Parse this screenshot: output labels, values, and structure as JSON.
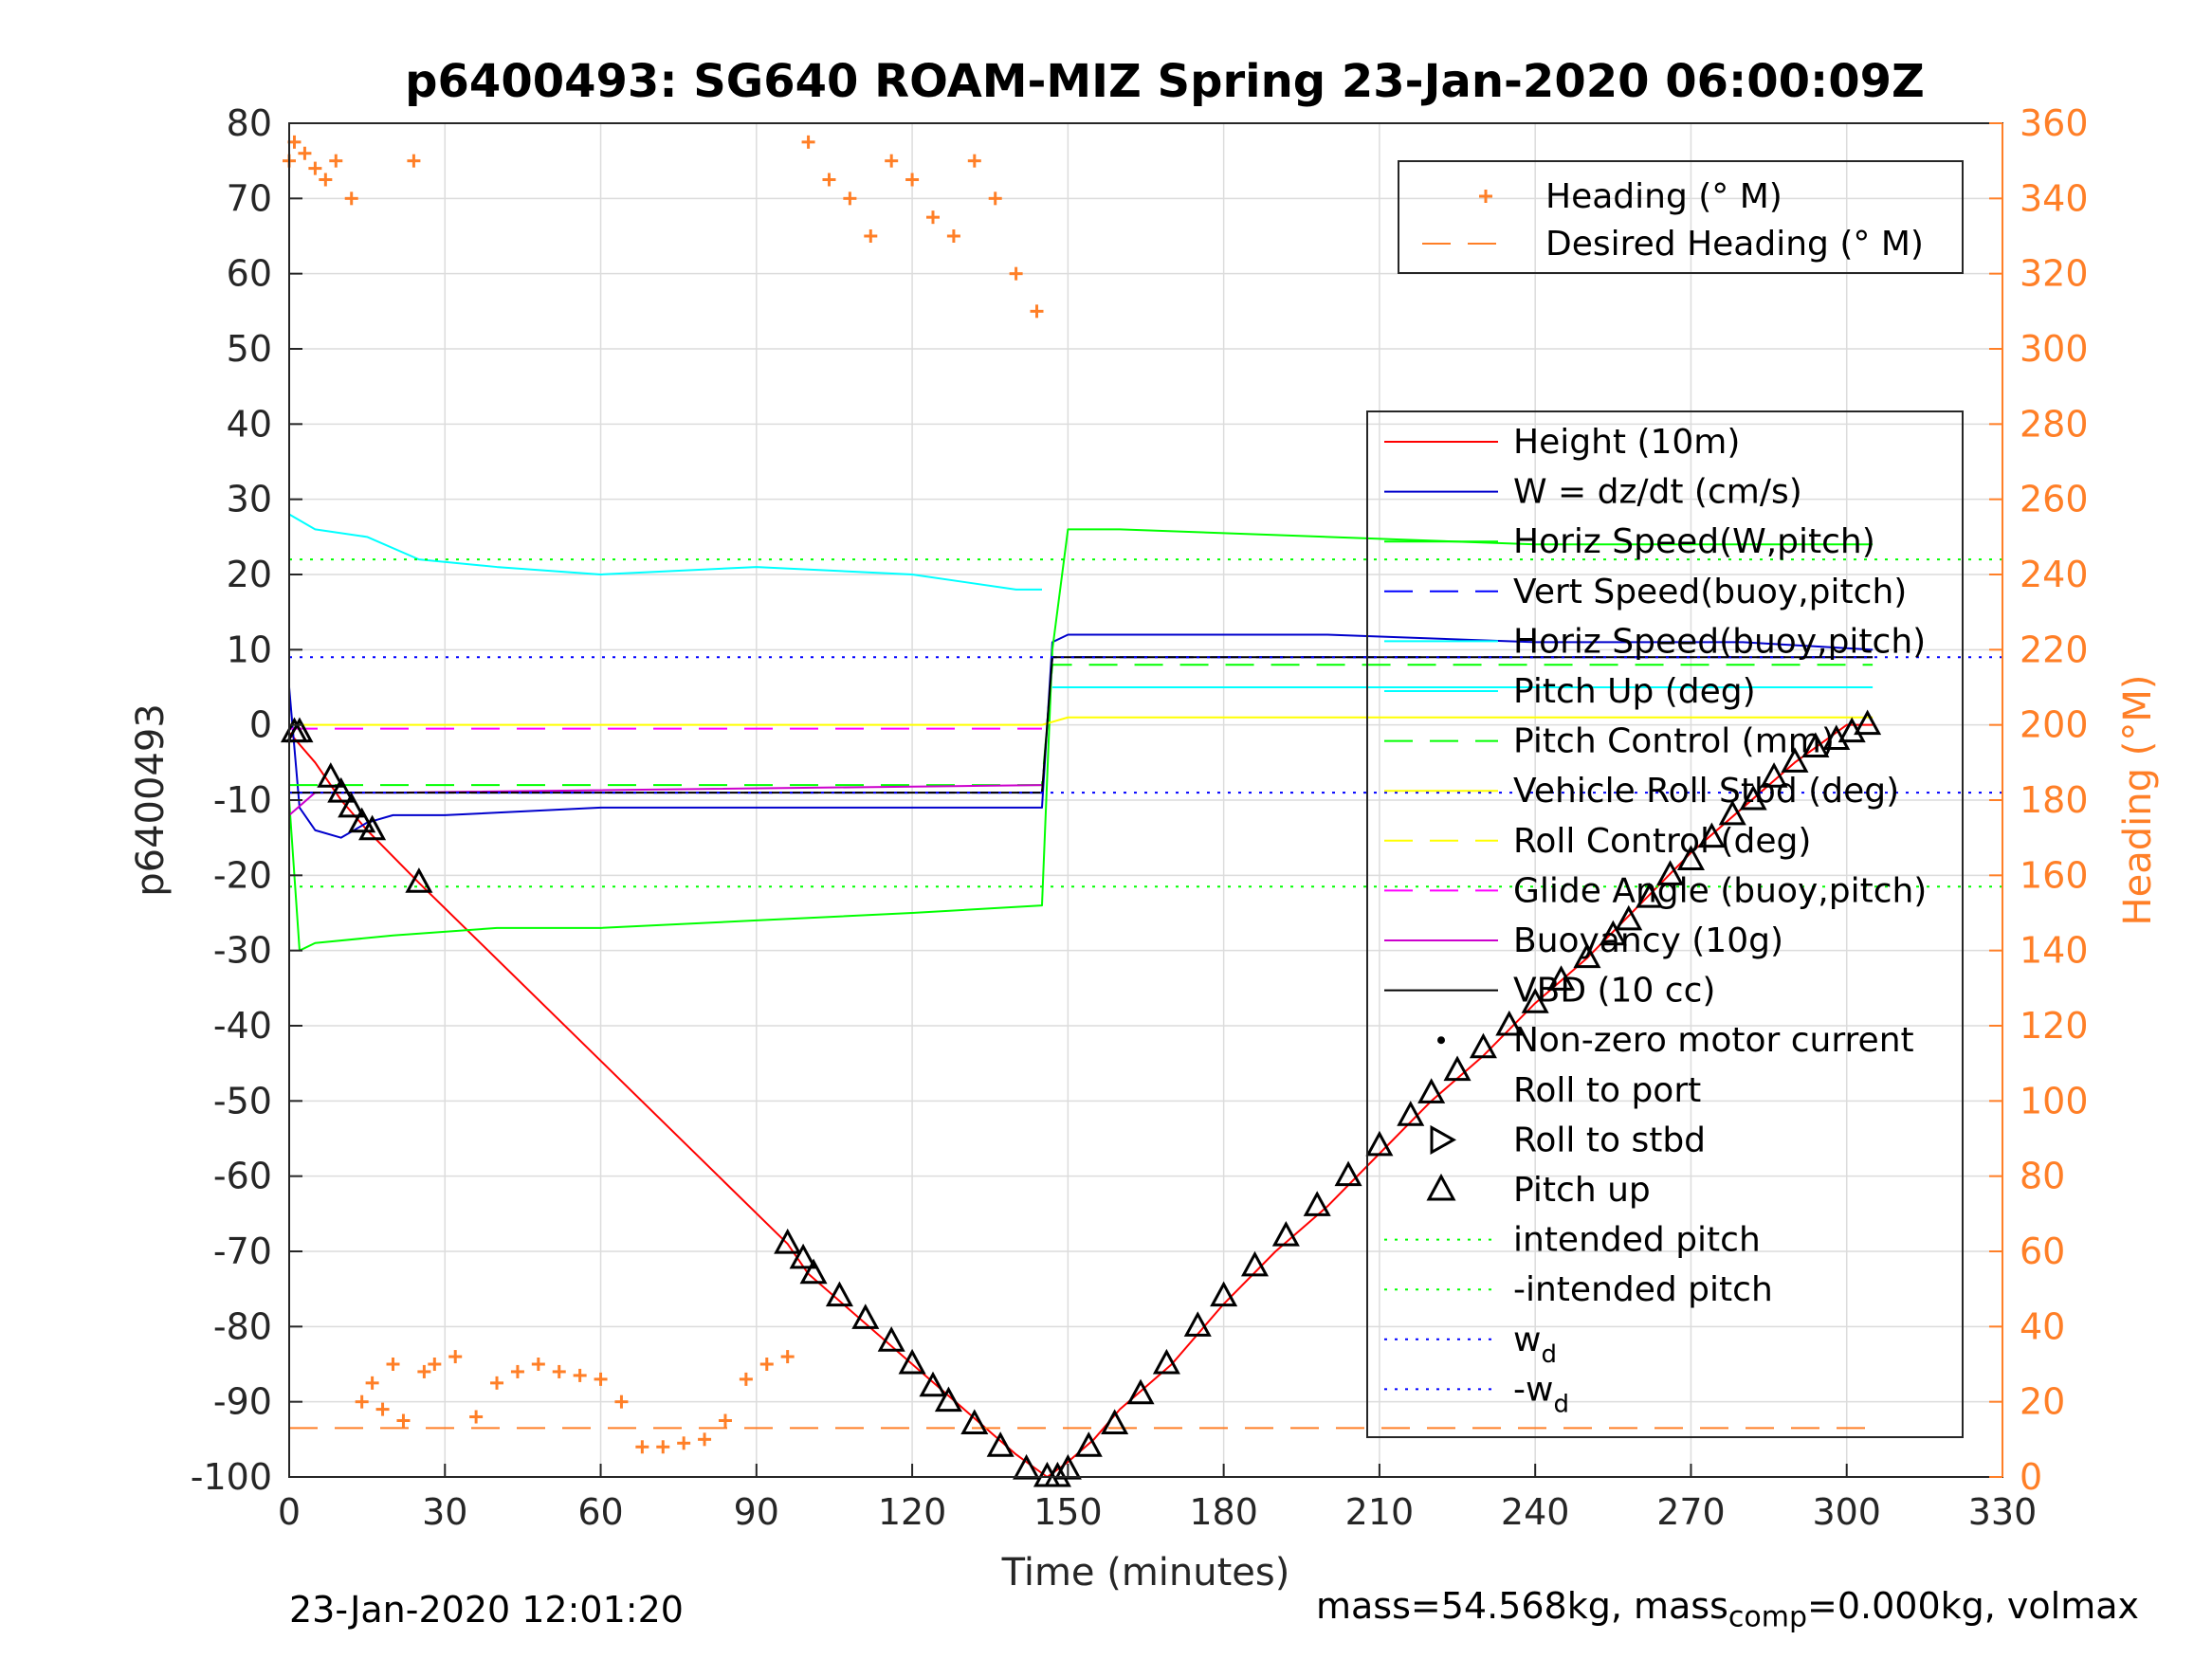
{
  "chart_data": {
    "type": "line",
    "title": "p6400493: SG640 ROAM-MIZ Spring 23-Jan-2020 06:00:09Z",
    "xlabel": "Time (minutes)",
    "ylabel": "p6400493",
    "y2label": "Heading (°M)",
    "xlim": [
      0,
      330
    ],
    "ylim": [
      -100,
      80
    ],
    "y2lim": [
      0,
      360
    ],
    "xticks": [
      0,
      30,
      60,
      90,
      120,
      150,
      180,
      210,
      240,
      270,
      300,
      330
    ],
    "yticks": [
      -100,
      -90,
      -80,
      -70,
      -60,
      -50,
      -40,
      -30,
      -20,
      -10,
      0,
      10,
      20,
      30,
      40,
      50,
      60,
      70,
      80
    ],
    "y2ticks": [
      0,
      20,
      40,
      60,
      80,
      100,
      120,
      140,
      160,
      180,
      200,
      220,
      240,
      260,
      280,
      300,
      320,
      340,
      360
    ],
    "grid": true,
    "colors": {
      "heading": "#ff7f27",
      "height": "#ff0000",
      "w": "#0000cc",
      "horiz_w": "#00ff00",
      "vert_buoy": "#0000ff",
      "horiz_buoy": "#00ffff",
      "pitch_up": "#00ffff",
      "pitch_control": "#00ff00",
      "roll_stbd": "#ffff00",
      "roll_control": "#ffff00",
      "glide": "#ff00ff",
      "buoyancy": "#cc00cc",
      "vbd": "#000000",
      "markers": "#000000"
    },
    "legends": [
      {
        "placement": "top-right",
        "entries": [
          "Heading (° M)",
          "Desired Heading (° M)"
        ]
      },
      {
        "placement": "right",
        "entries": [
          "Height (10m)",
          "W = dz/dt (cm/s)",
          "Horiz Speed(W,pitch)",
          "Vert Speed(buoy,pitch)",
          "Horiz Speed(buoy,pitch)",
          "Pitch Up (deg)",
          "Pitch Control (mm)",
          "Vehicle Roll Stbd (deg)",
          "Roll Control (deg)",
          "Glide Angle (buoy,pitch)",
          "Buoyancy (10g)",
          "VBD (10 cc)",
          "Non-zero motor current",
          "Roll to port",
          "Roll to stbd",
          "Pitch up",
          "intended pitch",
          "-intended pitch",
          "w",
          "-w"
        ],
        "subscripts": {
          "w": "d",
          "-w": "d"
        }
      }
    ],
    "series": [
      {
        "name": "Height (10m)",
        "axis": "left",
        "x": [
          0,
          5,
          10,
          15,
          25,
          96,
          100,
          110,
          120,
          130,
          140,
          146,
          150,
          155,
          160,
          170,
          180,
          190,
          200,
          210,
          220,
          230,
          240,
          250,
          260,
          270,
          280,
          290,
          300,
          305
        ],
        "y": [
          -1,
          -5,
          -10,
          -14,
          -21,
          -69,
          -73,
          -79,
          -85,
          -91,
          -97,
          -100,
          -98,
          -95,
          -91,
          -85,
          -77,
          -70,
          -64,
          -57,
          -50,
          -44,
          -37,
          -31,
          -24,
          -17,
          -11,
          -5,
          0,
          0
        ]
      },
      {
        "name": "W = dz/dt (cm/s)",
        "axis": "left",
        "x": [
          0,
          2,
          5,
          10,
          15,
          20,
          30,
          60,
          90,
          120,
          145,
          147,
          150,
          160,
          200,
          240,
          280,
          305
        ],
        "y": [
          5,
          -11,
          -14,
          -15,
          -13,
          -12,
          -12,
          -11,
          -11,
          -11,
          -11,
          11,
          12,
          12,
          12,
          11,
          11,
          10
        ]
      },
      {
        "name": "Horiz Speed(W,pitch)",
        "axis": "left",
        "x": [
          0,
          2,
          5,
          20,
          40,
          60,
          90,
          120,
          145,
          147,
          150,
          160,
          200,
          240,
          280,
          305
        ],
        "y": [
          -10,
          -30,
          -29,
          -28,
          -27,
          -27,
          -26,
          -25,
          -24,
          10,
          26,
          26,
          25,
          24,
          24,
          24
        ]
      },
      {
        "name": "Vert Speed(buoy,pitch)",
        "axis": "left",
        "x": [
          0,
          145,
          147,
          305
        ],
        "y": [
          -9,
          -9,
          9,
          9
        ]
      },
      {
        "name": "Horiz Speed(buoy,pitch)",
        "axis": "left",
        "x": [
          0,
          5,
          15,
          25,
          40,
          60,
          90,
          120,
          130,
          140,
          145
        ],
        "y": [
          28,
          26,
          25,
          22,
          21,
          20,
          21,
          20,
          19,
          18,
          18
        ]
      },
      {
        "name": "Pitch Up (deg)",
        "axis": "left",
        "x": [
          147,
          305
        ],
        "y": [
          5,
          5
        ]
      },
      {
        "name": "Pitch Control (mm)",
        "axis": "left",
        "x": [
          0,
          145,
          147,
          305
        ],
        "y": [
          -8,
          -8,
          8,
          8
        ]
      },
      {
        "name": "Vehicle Roll Stbd (deg)",
        "axis": "left",
        "x": [
          0,
          145,
          150,
          305
        ],
        "y": [
          0,
          0,
          1,
          1
        ]
      },
      {
        "name": "Glide Angle (buoy,pitch)",
        "axis": "left",
        "x": [
          0,
          145
        ],
        "y": [
          -0.5,
          -0.5
        ]
      },
      {
        "name": "Buoyancy (10g)",
        "axis": "left",
        "x": [
          0,
          5,
          20,
          145
        ],
        "y": [
          -12,
          -9,
          -9,
          -8
        ]
      },
      {
        "name": "VBD (10 cc)",
        "axis": "left",
        "x": [
          0,
          145,
          147,
          305
        ],
        "y": [
          -9,
          -9,
          9,
          9
        ]
      },
      {
        "name": "intended pitch",
        "axis": "left",
        "x": [
          0,
          330
        ],
        "y": [
          22,
          22
        ]
      },
      {
        "name": "-intended pitch",
        "axis": "left",
        "x": [
          0,
          330
        ],
        "y": [
          -21.5,
          -21.5
        ]
      },
      {
        "name": "w",
        "axis": "left",
        "x": [
          0,
          330
        ],
        "y": [
          9,
          9
        ]
      },
      {
        "name": "-w",
        "axis": "left",
        "x": [
          0,
          330
        ],
        "y": [
          -9,
          -9
        ]
      },
      {
        "name": "Desired Heading (° M)",
        "axis": "right",
        "x": [
          0,
          305
        ],
        "y": [
          13,
          13
        ]
      },
      {
        "name": "Pitch up",
        "axis": "left",
        "marker": "triangle-up",
        "x": [
          1,
          2,
          8,
          10,
          12,
          14,
          16,
          25,
          96,
          99,
          101,
          106,
          111,
          116,
          120,
          124,
          127,
          132,
          137,
          142,
          146,
          148,
          150,
          154,
          159,
          164,
          169,
          175,
          180,
          186,
          192,
          198,
          204,
          210,
          216,
          220,
          225,
          230,
          235,
          240,
          245,
          250,
          255,
          258,
          262,
          266,
          270,
          274,
          278,
          282,
          286,
          290,
          294,
          298,
          301,
          304
        ],
        "y": [
          -1,
          -1,
          -7,
          -9,
          -11,
          -13,
          -14,
          -21,
          -69,
          -71,
          -73,
          -76,
          -79,
          -82,
          -85,
          -88,
          -90,
          -93,
          -96,
          -99,
          -100,
          -100,
          -99,
          -96,
          -93,
          -89,
          -85,
          -80,
          -76,
          -72,
          -68,
          -64,
          -60,
          -56,
          -52,
          -49,
          -46,
          -43,
          -40,
          -37,
          -34,
          -31,
          -28,
          -26,
          -23,
          -20,
          -18,
          -15,
          -12,
          -10,
          -7,
          -5,
          -3,
          -2,
          -1,
          0
        ]
      },
      {
        "name": "Heading (° M)",
        "axis": "right",
        "marker": "plus",
        "x": [
          0,
          1,
          3,
          5,
          7,
          9,
          12,
          14,
          16,
          18,
          20,
          22,
          24,
          26,
          28,
          32,
          36,
          40,
          44,
          48,
          52,
          56,
          60,
          64,
          68,
          72,
          76,
          80,
          84,
          88,
          92,
          96,
          100,
          104,
          108,
          112,
          116,
          120,
          124,
          128,
          132,
          136,
          140,
          144
        ],
        "y": [
          350,
          355,
          352,
          348,
          345,
          350,
          340,
          20,
          25,
          18,
          30,
          15,
          350,
          28,
          30,
          32,
          16,
          25,
          28,
          30,
          28,
          27,
          26,
          20,
          8,
          8,
          9,
          10,
          15,
          26,
          30,
          32,
          355,
          345,
          340,
          330,
          350,
          345,
          335,
          330,
          350,
          340,
          320,
          310
        ]
      }
    ]
  },
  "footer": {
    "date": "23-Jan-2020 12:01:20",
    "mass_text": "mass=54.568kg, mass",
    "mass_sub": "comp",
    "mass_tail": "=0.000kg, volmax"
  }
}
